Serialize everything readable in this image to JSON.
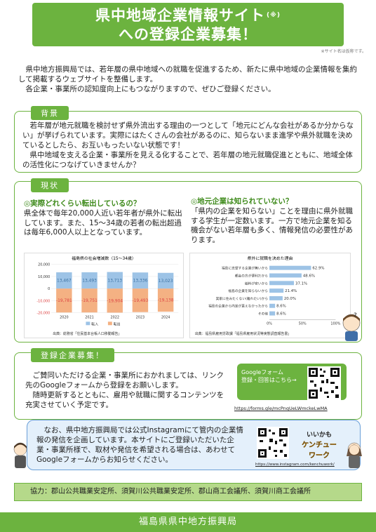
{
  "header": {
    "title_line1": "県中地域企業情報サイト",
    "title_mark": "(※)",
    "title_line2": "への登録企業募集！",
    "site_note": "※サイト名は仮称です。"
  },
  "intro": {
    "p1": "県中地方振興局では、若年層の県中地域への就職を促進するため、新たに県中地域の企業情報を集約して掲載するウェブサイトを整備します。",
    "p2": "各企業・事業所の認知度向上にもつながりますので、ぜひご登録ください。"
  },
  "background": {
    "tab": "背景",
    "p1": "若年層が地元就職を検討せず県外流出する理由の一つとして「地元にどんな会社があるか分からない」が挙げられています。実際にはたくさんの会社があるのに、知らないまま進学や県外就職を決めているとしたら、お互いもったいない状態です！",
    "p2": "県中地域を支える企業・事業所を見える化することで、若年層の地元就職促進とともに、地域全体の活性化につなげていきませんか？"
  },
  "current": {
    "tab": "現状",
    "left_heading": "◎実際どれくらい転出しているの？",
    "left_text": "県全体で毎年20,000人近い若年者が県外に転出しています。また、15～34歳の若者の転出超過は毎年6,000人以上となっています。",
    "right_heading": "◎地元企業は知られていない？",
    "right_text": "「県内の企業を知らない」ことを理由に県外就職する学生が一定数います。一方で地元企業を知る機会がない若年層も多く、情報発信の必要性があります。"
  },
  "chart_data": [
    {
      "type": "bar",
      "title": "福島県の社会増減数（15～34歳）",
      "categories": [
        "2020",
        "2021",
        "2022",
        "2023",
        "2024"
      ],
      "series": [
        {
          "name": "転入",
          "values": [
            13467,
            13493,
            13713,
            13336,
            13023
          ],
          "color": "#9dc3e6"
        },
        {
          "name": "転出",
          "values": [
            -19781,
            -19751,
            -19904,
            -19493,
            -19138
          ],
          "color": "#f4b183"
        }
      ],
      "value_labels": {
        "in": [
          "13,467",
          "13,493",
          "13,713",
          "13,336",
          "13,023"
        ],
        "out": [
          "-19,781",
          "-19,751",
          "-19,904",
          "-19,493",
          "-19,138"
        ]
      },
      "y_ticks": [
        "20,000",
        "10,000",
        "0",
        "-10,000",
        "-20,000"
      ],
      "ylim": [
        -20000,
        20000
      ],
      "source": "出典：総務省「住民基本台帳人口移動報告」"
    },
    {
      "type": "bar",
      "orientation": "horizontal",
      "title": "県外に就職を決めた理由",
      "categories": [
        "福島に志望する企業が無いから",
        "都会の方が便利だから",
        "給料が安いから",
        "福島の企業を知らないから",
        "実家に住みたくない(離れたい)から",
        "福島の企業から内定が貰えなかったから",
        "その他"
      ],
      "values": [
        62.9,
        48.6,
        37.1,
        21.4,
        20.0,
        8.6,
        8.6
      ],
      "value_labels": [
        "62.9%",
        "48.6%",
        "37.1%",
        "21.4%",
        "20.0%",
        "8.6%",
        "8.6%"
      ],
      "x_ticks": [
        "0%",
        "50%",
        "100%"
      ],
      "xlim": [
        0,
        100
      ],
      "source": "出典：福島県雇用労政課「福島県雇用状況等実態調査報告書」"
    }
  ],
  "registration": {
    "tab": "登録企業募集！",
    "p1": "ご賛同いただける企業・事業所におかれましては、リンク先のGoogleフォームから登録をお願いします。",
    "p2": "随時更新するとともに、雇用や就職に関するコンテンツを充実させていく予定です。",
    "gf_line1": "Googleフォーム",
    "gf_line2": "登録・回答はこちら→",
    "gf_url": "https://forms.gle/mcPnqUeLWmckeLwMA"
  },
  "instagram": {
    "text": "なお、県中地方振興局では公式Instagramにて管内の企業情報の発信を企画しています。本サイトにご登録いただいた企業・事業所様で、取材や発信を希望される場合は、あわせてGoogleフォームからお知らせください。",
    "url": "https://www.instagram.com/kenchuwork/",
    "badge1": "いいかも",
    "badge2": "ケンチュー",
    "badge3": "ワーク"
  },
  "cooperation": "協力：郡山公共職業安定所、須賀川公共職業安定所、郡山商工会議所、須賀川商工会議所",
  "footer": "福島県県中地方振興局",
  "colors": {
    "green": "#6cb33f",
    "light_green": "#b5d98a",
    "blue_box": "#e4f0fb",
    "in_bar": "#9dc3e6",
    "out_bar": "#f4b183",
    "h_bar": "#9dc3e6"
  }
}
